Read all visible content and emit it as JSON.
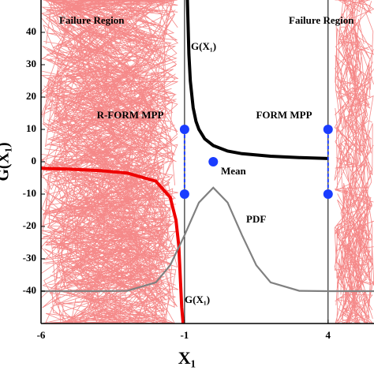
{
  "chart_data": {
    "type": "line",
    "xlabel": "X₁",
    "ylabel": "G(X₁)",
    "xlim": [
      -6,
      5.6
    ],
    "ylim": [
      -50,
      50
    ],
    "xticks": [
      -6,
      -1,
      4
    ],
    "yticks": [
      -40,
      -30,
      -20,
      -10,
      0,
      10,
      20,
      30,
      40
    ],
    "series": [
      {
        "name": "G(X₁)",
        "color": "#000000",
        "x": [
          -0.9,
          -0.85,
          -0.8,
          -0.7,
          -0.6,
          -0.5,
          -0.3,
          0,
          0.5,
          1,
          2,
          3,
          4
        ],
        "values": [
          50,
          33.3,
          25,
          16.7,
          12.5,
          10,
          7.1,
          5,
          3.3,
          2.5,
          1.7,
          1.3,
          1
        ]
      },
      {
        "name": "G(X₁)",
        "color": "#ee0000",
        "x": [
          -6,
          -5,
          -4,
          -3,
          -2,
          -1.5,
          -1.3,
          -1.2,
          -1.1,
          -1.05
        ],
        "values": [
          -2,
          -2.3,
          -2.7,
          -3.5,
          -6,
          -11,
          -18,
          -26,
          -45,
          -50
        ]
      },
      {
        "name": "PDF",
        "color": "#808080",
        "x": [
          -6,
          -4,
          -3,
          -2,
          -1.5,
          -1,
          -0.5,
          0,
          0.5,
          1,
          1.5,
          2,
          3,
          4,
          5.6
        ],
        "values": [
          -40,
          -40,
          -39.9,
          -37.3,
          -32,
          -22.7,
          -12.6,
          -8,
          -12.6,
          -22.7,
          -32,
          -37.3,
          -39.9,
          -40,
          -40
        ]
      }
    ],
    "points": {
      "x": [
        -1,
        -1,
        0,
        4,
        4
      ],
      "values": [
        10,
        -10,
        0,
        10,
        -10
      ],
      "color": "#1a3cff"
    },
    "annotations": [
      "Failure Region",
      "Failure Region",
      "R-FORM MPP",
      "FORM MPP",
      "Mean",
      "PDF",
      "G(X₁)",
      "G(X₁)"
    ]
  }
}
